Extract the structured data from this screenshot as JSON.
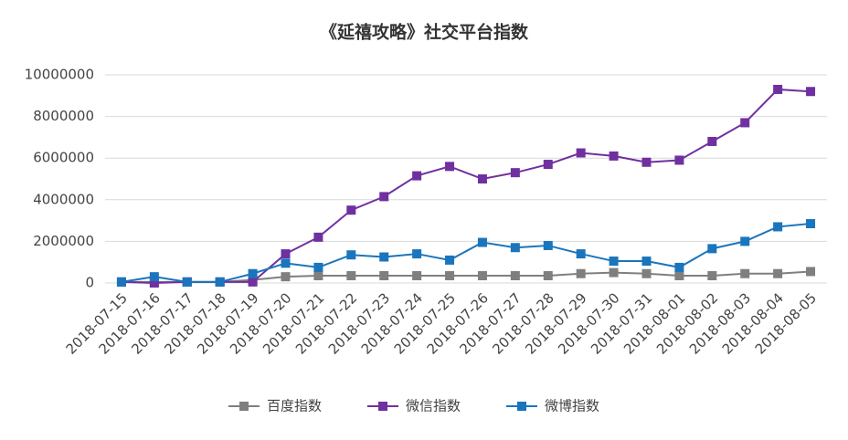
{
  "chart_data": {
    "type": "line",
    "title": "《延禧攻略》社交平台指数",
    "categories": [
      "2018-07-15",
      "2018-07-16",
      "2018-07-17",
      "2018-07-18",
      "2018-07-19",
      "2018-07-20",
      "2018-07-21",
      "2018-07-22",
      "2018-07-23",
      "2018-07-24",
      "2018-07-25",
      "2018-07-26",
      "2018-07-27",
      "2018-07-28",
      "2018-07-29",
      "2018-07-30",
      "2018-07-31",
      "2018-08-01",
      "2018-08-02",
      "2018-08-03",
      "2018-08-04",
      "2018-08-05"
    ],
    "series": [
      {
        "name": "百度指数",
        "color": "#7f7f7f",
        "values": [
          50000,
          50000,
          50000,
          50000,
          150000,
          300000,
          350000,
          350000,
          350000,
          350000,
          350000,
          350000,
          350000,
          350000,
          450000,
          500000,
          450000,
          350000,
          350000,
          450000,
          450000,
          550000
        ]
      },
      {
        "name": "微信指数",
        "color": "#7030a0",
        "values": [
          50000,
          0,
          50000,
          50000,
          50000,
          1400000,
          2200000,
          3500000,
          4150000,
          5150000,
          5600000,
          5000000,
          5300000,
          5700000,
          6250000,
          6100000,
          5800000,
          5900000,
          6800000,
          7700000,
          9300000,
          9200000
        ]
      },
      {
        "name": "微博指数",
        "color": "#1a75bc",
        "values": [
          50000,
          300000,
          50000,
          50000,
          450000,
          950000,
          750000,
          1350000,
          1250000,
          1400000,
          1100000,
          1950000,
          1700000,
          1800000,
          1400000,
          1050000,
          1050000,
          750000,
          1650000,
          2000000,
          2700000,
          2850000
        ]
      }
    ],
    "ylim": [
      0,
      10000000
    ],
    "yticks": [
      0,
      2000000,
      4000000,
      6000000,
      8000000,
      10000000
    ],
    "grid": true,
    "legend": "bottom"
  }
}
